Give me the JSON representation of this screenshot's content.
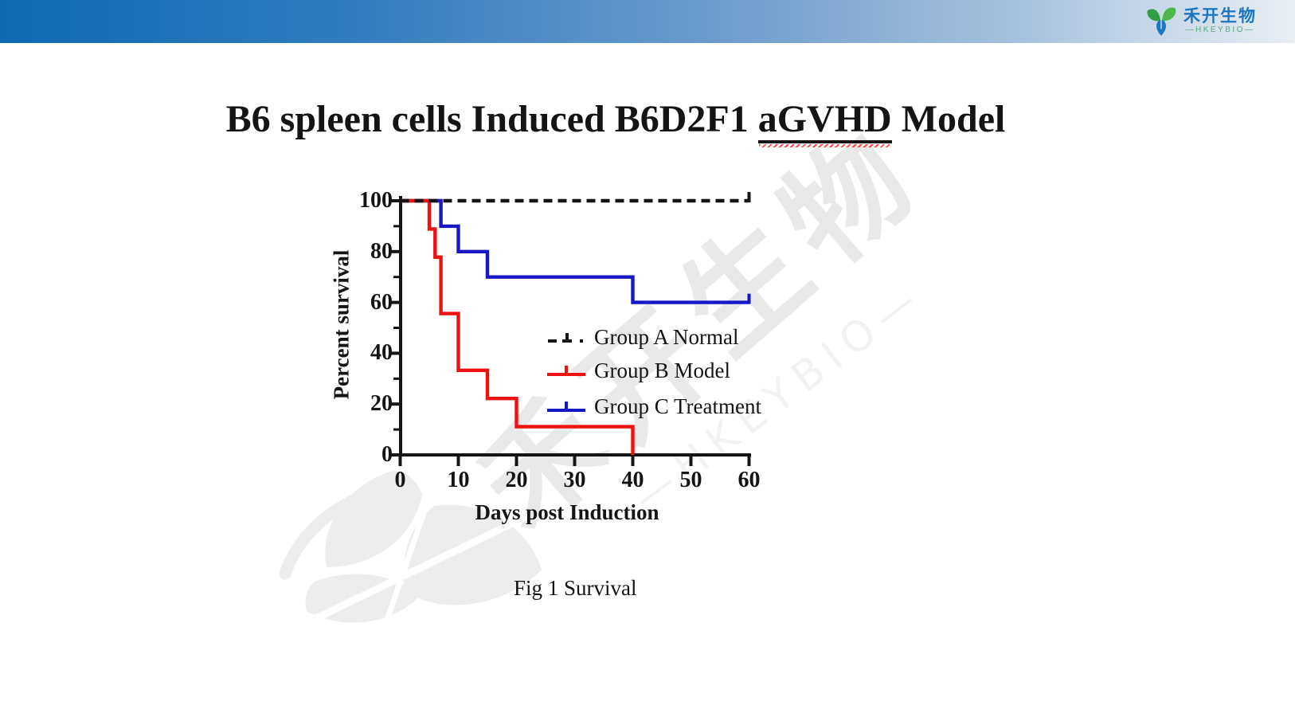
{
  "header": {
    "logo": {
      "company_cn": "禾开生物",
      "company_en": "—HKEYBIO—",
      "brand_blue": "#1b76c1",
      "brand_green": "#56ae74"
    }
  },
  "slide": {
    "title_prefix": "B6 spleen cells Induced B6D2F1 ",
    "title_highlight": "aGVHD",
    "title_suffix": " Model",
    "caption": "Fig 1 Survival"
  },
  "watermark": {
    "text_cn": "禾开生物",
    "text_en": "—HKEYBIO—"
  },
  "chart_data": {
    "type": "line",
    "subtype": "kaplan-meier-survival-steps",
    "title": "",
    "xlabel": "Days post Induction",
    "ylabel": "Percent survival",
    "xlim": [
      0,
      60
    ],
    "ylim": [
      0,
      100
    ],
    "x_ticks": [
      0,
      10,
      20,
      30,
      40,
      50,
      60
    ],
    "y_ticks": [
      0,
      20,
      40,
      60,
      80,
      100
    ],
    "y_minor_ticks": [
      10,
      30,
      50,
      70,
      90
    ],
    "grid": false,
    "legend_position": "inside-right",
    "axis_color": "#141414",
    "series": [
      {
        "name": "Group A Normal",
        "color": "#141414",
        "style": "dashed",
        "points": [
          [
            0,
            100
          ],
          [
            60,
            100
          ]
        ],
        "censored_at_day": 60
      },
      {
        "name": "Group B Model",
        "color": "#ee1111",
        "style": "solid",
        "points": [
          [
            0,
            100
          ],
          [
            5,
            100
          ],
          [
            5,
            88.9
          ],
          [
            6,
            88.9
          ],
          [
            6,
            77.8
          ],
          [
            7,
            77.8
          ],
          [
            7,
            55.6
          ],
          [
            10,
            55.6
          ],
          [
            10,
            33.3
          ],
          [
            15,
            33.3
          ],
          [
            15,
            22.2
          ],
          [
            20,
            22.2
          ],
          [
            20,
            11.1
          ],
          [
            40,
            11.1
          ],
          [
            40,
            0
          ]
        ],
        "censored_at_day": null
      },
      {
        "name": "Group C Treatment",
        "color": "#1717c6",
        "style": "solid",
        "points": [
          [
            0,
            100
          ],
          [
            7,
            100
          ],
          [
            7,
            90
          ],
          [
            10,
            90
          ],
          [
            10,
            80
          ],
          [
            15,
            80
          ],
          [
            15,
            70
          ],
          [
            40,
            70
          ],
          [
            40,
            60
          ],
          [
            60,
            60
          ]
        ],
        "censored_at_day": 60
      }
    ]
  }
}
